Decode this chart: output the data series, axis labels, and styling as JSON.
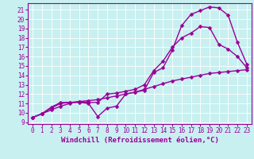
{
  "xlabel": "Windchill (Refroidissement éolien,°C)",
  "bg_color": "#c8f0f0",
  "line_color": "#990099",
  "grid_color": "#ffffff",
  "xlim": [
    -0.5,
    23.5
  ],
  "ylim": [
    8.8,
    21.7
  ],
  "yticks": [
    9,
    10,
    11,
    12,
    13,
    14,
    15,
    16,
    17,
    18,
    19,
    20,
    21
  ],
  "xticks": [
    0,
    1,
    2,
    3,
    4,
    5,
    6,
    7,
    8,
    9,
    10,
    11,
    12,
    13,
    14,
    15,
    16,
    17,
    18,
    19,
    20,
    21,
    22,
    23
  ],
  "line1_x": [
    0,
    1,
    2,
    3,
    4,
    5,
    6,
    7,
    8,
    9,
    10,
    11,
    12,
    13,
    14,
    15,
    16,
    17,
    18,
    19,
    20,
    21,
    22,
    23
  ],
  "line1_y": [
    9.5,
    9.9,
    10.6,
    11.1,
    11.1,
    11.1,
    11.0,
    9.6,
    10.5,
    10.7,
    12.0,
    12.2,
    12.4,
    14.3,
    14.8,
    16.7,
    19.3,
    20.5,
    20.9,
    21.3,
    21.2,
    20.4,
    17.5,
    15.2
  ],
  "line2_x": [
    0,
    1,
    2,
    3,
    4,
    5,
    6,
    7,
    8,
    9,
    10,
    11,
    12,
    13,
    14,
    15,
    16,
    17,
    18,
    19,
    20,
    21,
    22,
    23
  ],
  "line2_y": [
    9.5,
    9.9,
    10.5,
    11.0,
    11.1,
    11.2,
    11.1,
    11.1,
    12.0,
    12.1,
    12.3,
    12.5,
    13.0,
    14.5,
    15.5,
    17.0,
    18.0,
    18.5,
    19.2,
    19.1,
    17.3,
    16.8,
    16.0,
    14.8
  ],
  "line3_x": [
    0,
    1,
    2,
    3,
    4,
    5,
    6,
    7,
    8,
    9,
    10,
    11,
    12,
    13,
    14,
    15,
    16,
    17,
    18,
    19,
    20,
    21,
    22,
    23
  ],
  "line3_y": [
    9.5,
    9.9,
    10.3,
    10.7,
    11.0,
    11.2,
    11.3,
    11.4,
    11.6,
    11.8,
    12.0,
    12.2,
    12.5,
    12.8,
    13.1,
    13.4,
    13.6,
    13.8,
    14.0,
    14.2,
    14.3,
    14.4,
    14.5,
    14.6
  ],
  "marker": "D",
  "markersize": 2.5,
  "linewidth": 1.0,
  "tick_fontsize": 5.5,
  "xlabel_fontsize": 6.5
}
